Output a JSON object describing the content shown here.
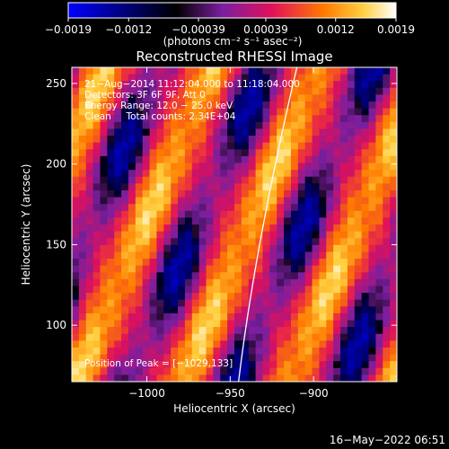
{
  "chart_data": {
    "type": "heatmap",
    "title": "Reconstructed RHESSI Image",
    "xlabel": "Heliocentric X (arcsec)",
    "ylabel": "Heliocentric Y (arcsec)",
    "xlim": [
      -1045,
      -850
    ],
    "ylim": [
      65,
      260
    ],
    "xticks": [
      -1000,
      -950,
      -900
    ],
    "xtick_labels": [
      "−1000",
      "−950",
      "−900"
    ],
    "yticks": [
      100,
      150,
      200,
      250
    ],
    "ytick_labels": [
      "100",
      "150",
      "200",
      "250"
    ],
    "colorbar": {
      "range": [
        -0.0019,
        0.0019
      ],
      "ticks": [
        -0.0019,
        -0.0012,
        -0.00039,
        0.00039,
        0.0012,
        0.0019
      ],
      "tick_labels": [
        "−0.0019",
        "−0.0012",
        "−0.00039",
        "0.00039",
        "0.0012",
        "0.0019"
      ],
      "unit_label": "(photons cm⁻² s⁻¹ asec⁻²)"
    },
    "annotations": [
      "21−Aug−2014 11:12:04.000 to 11:18:04.000",
      "Detectors: 3F 6F 9F, Att 0",
      "Energy Range: 12.0 − 25.0 keV",
      "Clean     Total counts: 2.34E+04"
    ],
    "peak_label": "Position of Peak = [−1029,133]",
    "peak": [
      -1029,
      133
    ],
    "limb_curve": [
      [
        -945,
        65
      ],
      [
        -935,
        150
      ],
      [
        -910,
        260
      ]
    ],
    "timestamp": "16−May−2022 06:51"
  }
}
